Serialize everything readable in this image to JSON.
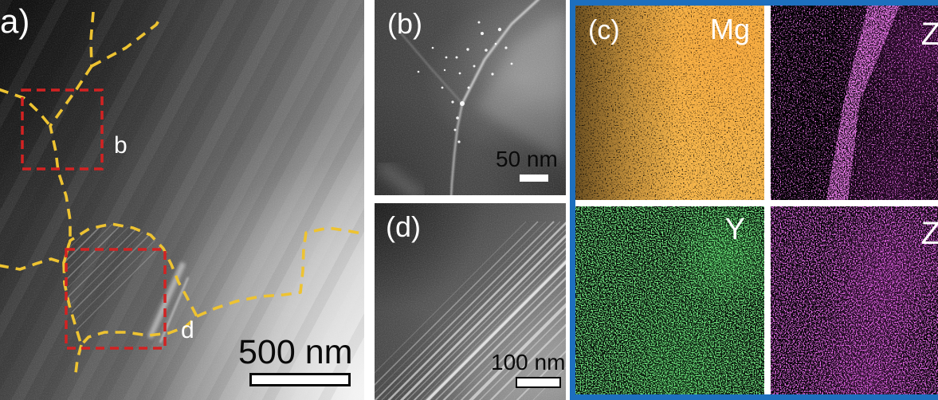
{
  "figure": {
    "panel_a": {
      "label": "(a)",
      "scale_bar": "500 nm",
      "roi_b_label": "b",
      "roi_d_label": "d"
    },
    "panel_b": {
      "label": "(b)",
      "scale_bar": "50 nm"
    },
    "panel_c": {
      "label": "(c)",
      "maps": [
        {
          "element": "Mg",
          "color": "#e8791d"
        },
        {
          "element": "Z",
          "color": "#e22ce2"
        },
        {
          "element": "Y",
          "color": "#2ec42e"
        },
        {
          "element": "Z",
          "color": "#cf25cf"
        }
      ]
    },
    "panel_d": {
      "label": "(d)",
      "scale_bar": "100 nm"
    },
    "colors": {
      "frame_blue": "#1d6fbe",
      "grain_boundary_yellow": "#eec331",
      "roi_red": "#d32222"
    }
  }
}
